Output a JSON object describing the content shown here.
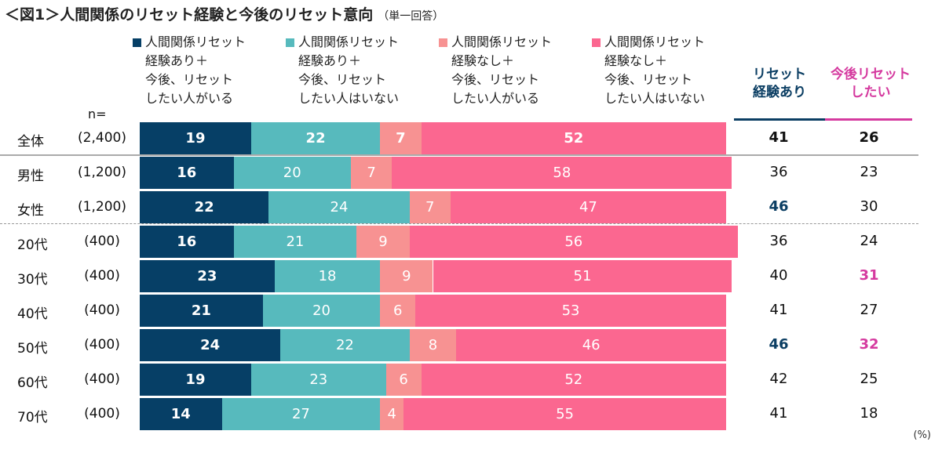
{
  "title": "＜図1＞人間関係のリセット経験と今後のリセット意向",
  "subtitle": "（単一回答）",
  "n_label": "n=",
  "unit": "(%)",
  "colors": {
    "s1": "#063f66",
    "s2": "#57babd",
    "s3": "#f79292",
    "s4": "#fb6790",
    "col1": "#0b3e63",
    "col2": "#d53a9f"
  },
  "right_headers": [
    [
      "リセット",
      "経験あり"
    ],
    [
      "今後リセット",
      "したい"
    ]
  ],
  "chart_data": {
    "type": "bar",
    "stacked": true,
    "orientation": "horizontal",
    "xlim": [
      0,
      100
    ],
    "legend_placement": "top",
    "series": [
      {
        "name": [
          "人間関係リセット",
          "経験あり＋",
          "今後、リセット",
          "したい人がいる"
        ],
        "values": [
          19,
          16,
          22,
          16,
          23,
          21,
          24,
          19,
          14
        ]
      },
      {
        "name": [
          "人間関係リセット",
          "経験あり＋",
          "今後、リセット",
          "したい人はいない"
        ],
        "values": [
          22,
          20,
          24,
          21,
          18,
          20,
          22,
          23,
          27
        ]
      },
      {
        "name": [
          "人間関係リセット",
          "経験なし＋",
          "今後、リセット",
          "したい人がいる"
        ],
        "values": [
          7,
          7,
          7,
          9,
          9,
          6,
          8,
          6,
          4
        ]
      },
      {
        "name": [
          "人間関係リセット",
          "経験なし＋",
          "今後、リセット",
          "したい人はいない"
        ],
        "values": [
          52,
          58,
          47,
          56,
          51,
          53,
          46,
          52,
          55
        ]
      }
    ],
    "categories": [
      "全体",
      "男性",
      "女性",
      "20代",
      "30代",
      "40代",
      "50代",
      "60代",
      "70代"
    ],
    "n": [
      "(2,400)",
      "(1,200)",
      "(1,200)",
      "(400)",
      "(400)",
      "(400)",
      "(400)",
      "(400)",
      "(400)"
    ],
    "reset_experience": [
      41,
      36,
      46,
      36,
      40,
      41,
      46,
      42,
      41
    ],
    "want_reset": [
      26,
      23,
      30,
      24,
      31,
      27,
      32,
      25,
      18
    ],
    "highlight_reset_experience": [
      false,
      false,
      true,
      false,
      false,
      false,
      true,
      false,
      false
    ],
    "highlight_want_reset": [
      false,
      false,
      false,
      false,
      true,
      false,
      true,
      false,
      false
    ]
  }
}
